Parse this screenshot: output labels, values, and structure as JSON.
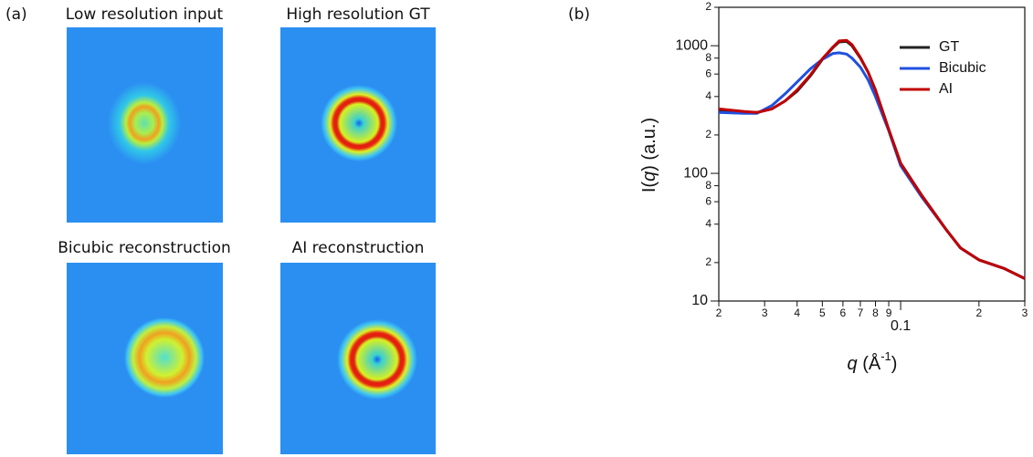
{
  "panel_labels": [
    "(a)",
    "(b)"
  ],
  "images": [
    {
      "title": "Low resolution input"
    },
    {
      "title": "High resolution GT"
    },
    {
      "title": "Bicubic reconstruction"
    },
    {
      "title": "AI reconstruction"
    }
  ],
  "chart_data": {
    "type": "line",
    "xlabel": [
      "q",
      " (Å",
      "-1",
      ")"
    ],
    "ylabel": [
      "I(",
      "q",
      ") (a.u.)"
    ],
    "xscale": "log",
    "yscale": "log",
    "xlim": [
      0.02,
      0.3
    ],
    "ylim": [
      10,
      2000
    ],
    "xticks": [
      {
        "value": 0.02,
        "label": "2"
      },
      {
        "value": 0.03,
        "label": "3"
      },
      {
        "value": 0.04,
        "label": "4"
      },
      {
        "value": 0.05,
        "label": "5"
      },
      {
        "value": 0.06,
        "label": "6"
      },
      {
        "value": 0.07,
        "label": "7"
      },
      {
        "value": 0.08,
        "label": "8"
      },
      {
        "value": 0.09,
        "label": "9"
      },
      0.1,
      {
        "value": 0.2,
        "label": "2"
      },
      {
        "value": 0.3,
        "label": "3"
      }
    ],
    "yticks": [
      10,
      {
        "value": 20,
        "label": "2"
      },
      {
        "value": 40,
        "label": "4"
      },
      {
        "value": 60,
        "label": "6"
      },
      {
        "value": 80,
        "label": "8"
      },
      100,
      {
        "value": 200,
        "label": "2"
      },
      {
        "value": 400,
        "label": "4"
      },
      {
        "value": 600,
        "label": "6"
      },
      {
        "value": 800,
        "label": "8"
      },
      1000,
      {
        "value": 2000,
        "label": "2"
      }
    ],
    "legend": "upper right",
    "x": [
      0.02,
      0.025,
      0.028,
      0.032,
      0.036,
      0.04,
      0.045,
      0.05,
      0.055,
      0.058,
      0.062,
      0.065,
      0.07,
      0.075,
      0.08,
      0.09,
      0.1,
      0.12,
      0.15,
      0.17,
      0.2,
      0.25,
      0.3
    ],
    "series": [
      {
        "name": "GT",
        "color": "#222222",
        "values": [
          310,
          300,
          300,
          320,
          370,
          440,
          580,
          780,
          970,
          1070,
          1080,
          1000,
          800,
          620,
          450,
          220,
          120,
          68,
          36,
          26,
          21,
          18,
          15
        ]
      },
      {
        "name": "Bicubic",
        "color": "#1f50e0",
        "values": [
          300,
          295,
          295,
          340,
          420,
          520,
          660,
          780,
          870,
          880,
          860,
          800,
          680,
          540,
          400,
          215,
          115,
          66,
          36,
          26,
          21,
          18,
          15
        ]
      },
      {
        "name": "AI",
        "color": "#c00000",
        "values": [
          320,
          305,
          300,
          320,
          370,
          450,
          590,
          790,
          980,
          1090,
          1100,
          1020,
          810,
          620,
          450,
          220,
          120,
          68,
          36,
          26,
          21,
          18,
          15
        ]
      }
    ]
  }
}
